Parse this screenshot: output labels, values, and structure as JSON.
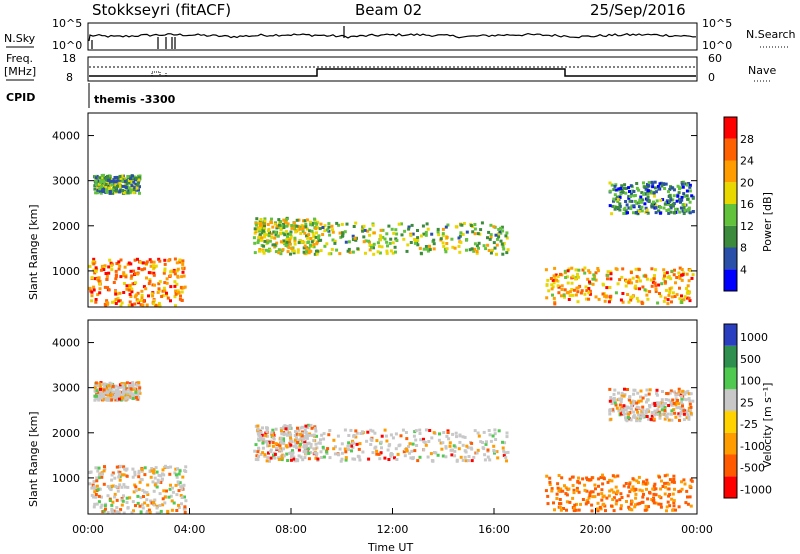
{
  "header": {
    "station": "Stokkseyri (fitACF)",
    "beam": "Beam 02",
    "date": "25/Sep/2016"
  },
  "status_panels": {
    "nsky_label": "N.Sky",
    "nsky_ticks": [
      "10^5",
      "10^0"
    ],
    "nsearch_label": "N.Search",
    "nsearch_ticks": [
      "10^5",
      "10^0"
    ],
    "freq_label_1": "Freq.",
    "freq_label_2": "[MHz]",
    "freq_ticks": [
      "18",
      "8"
    ],
    "nave_label": "Nave",
    "nave_ticks": [
      "60",
      "0"
    ],
    "cpid_label": "CPID",
    "cpid_value": "themis -3300"
  },
  "chart_data": [
    {
      "type": "heatmap",
      "panel": "power",
      "ylabel": "Slant Range [km]",
      "yticks": [
        "1000",
        "2000",
        "3000",
        "4000"
      ],
      "ylim": [
        200,
        4500
      ],
      "xlim": [
        "00:00",
        "24:00"
      ],
      "colorbar_label": "Power [dB]",
      "colorbar_ticks": [
        "4",
        "8",
        "12",
        "16",
        "20",
        "24",
        "28"
      ],
      "colorbar_colors": [
        "#0000ff",
        "#2a4fa8",
        "#3c8a3c",
        "#62c23c",
        "#e8d800",
        "#ff9c00",
        "#ff6000",
        "#ff0000"
      ],
      "echo_regions": [
        {
          "t0": 0.0,
          "t1": 3.8,
          "r0": 250,
          "r1": 1300,
          "level": 0.75
        },
        {
          "t0": 0.2,
          "t1": 2.0,
          "r0": 2750,
          "r1": 3150,
          "level": 0.35
        },
        {
          "t0": 6.5,
          "t1": 9.0,
          "r0": 1400,
          "r1": 2200,
          "level": 0.5
        },
        {
          "t0": 9.0,
          "t1": 16.5,
          "r0": 1400,
          "r1": 2100,
          "level": 0.45
        },
        {
          "t0": 18.0,
          "t1": 23.8,
          "r0": 300,
          "r1": 1100,
          "level": 0.7
        },
        {
          "t0": 20.5,
          "t1": 23.8,
          "r0": 2300,
          "r1": 3000,
          "level": 0.3
        }
      ]
    },
    {
      "type": "heatmap",
      "panel": "velocity",
      "ylabel": "Slant Range [km]",
      "yticks": [
        "1000",
        "2000",
        "3000",
        "4000"
      ],
      "ylim": [
        200,
        4500
      ],
      "xlim": [
        "00:00",
        "24:00"
      ],
      "xticks": [
        "00:00",
        "04:00",
        "08:00",
        "12:00",
        "16:00",
        "20:00",
        "00:00"
      ],
      "xlabel": "Time UT",
      "colorbar_label": "Velocity [m s⁻¹]",
      "colorbar_ticks": [
        "1000",
        "500",
        "100",
        "25",
        "-25",
        "-100",
        "-500",
        "-1000"
      ],
      "colorbar_colors": [
        "#2a3fbf",
        "#2e8f4f",
        "#4fc94f",
        "#c8c8c8",
        "#ffd200",
        "#ff9c00",
        "#ff5a00",
        "#ff0000"
      ],
      "echo_regions": [
        {
          "t0": 0.0,
          "t1": 3.8,
          "r0": 250,
          "r1": 1300,
          "level": 0.5
        },
        {
          "t0": 0.2,
          "t1": 2.0,
          "r0": 2750,
          "r1": 3150,
          "level": 0.5
        },
        {
          "t0": 6.5,
          "t1": 9.0,
          "r0": 1400,
          "r1": 2200,
          "level": 0.5
        },
        {
          "t0": 9.0,
          "t1": 16.5,
          "r0": 1400,
          "r1": 2100,
          "level": 0.5
        },
        {
          "t0": 18.0,
          "t1": 23.8,
          "r0": 300,
          "r1": 1100,
          "level": 0.75
        },
        {
          "t0": 20.5,
          "t1": 23.8,
          "r0": 2300,
          "r1": 3000,
          "level": 0.5
        }
      ]
    }
  ]
}
